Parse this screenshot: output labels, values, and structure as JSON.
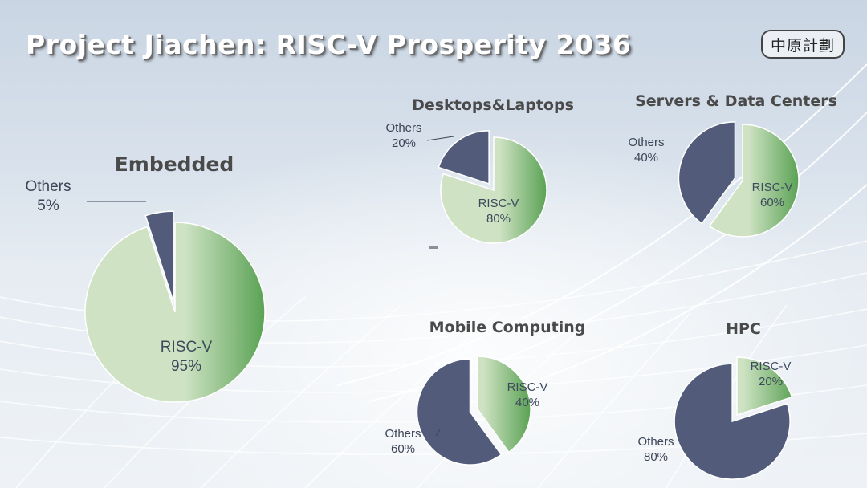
{
  "slide": {
    "title": "Project Jiachen: RISC-V Prosperity 2036",
    "logo_text": "中原計劃"
  },
  "colors": {
    "risc_v_light": "#cfe3c4",
    "risc_v_dark": "#5aa254",
    "others": "#525b7a",
    "label_on_green": "#3d4a5c",
    "label_outside": "#3d4456"
  },
  "chart_data": [
    {
      "type": "pie",
      "title": "Embedded",
      "slices": [
        {
          "label": "RISC-V",
          "value": 95,
          "value_label": "95%"
        },
        {
          "label": "Others",
          "value": 5,
          "value_label": "5%"
        }
      ]
    },
    {
      "type": "pie",
      "title": "Desktops&Laptops",
      "slices": [
        {
          "label": "RISC-V",
          "value": 80,
          "value_label": "80%"
        },
        {
          "label": "Others",
          "value": 20,
          "value_label": "20%"
        }
      ]
    },
    {
      "type": "pie",
      "title": "Servers & Data Centers",
      "slices": [
        {
          "label": "RISC-V",
          "value": 60,
          "value_label": "60%"
        },
        {
          "label": "Others",
          "value": 40,
          "value_label": "40%"
        }
      ]
    },
    {
      "type": "pie",
      "title": "Mobile Computing",
      "slices": [
        {
          "label": "RISC-V",
          "value": 40,
          "value_label": "40%"
        },
        {
          "label": "Others",
          "value": 60,
          "value_label": "60%"
        }
      ]
    },
    {
      "type": "pie",
      "title": "HPC",
      "slices": [
        {
          "label": "RISC-V",
          "value": 20,
          "value_label": "20%"
        },
        {
          "label": "Others",
          "value": 80,
          "value_label": "80%"
        }
      ]
    }
  ]
}
